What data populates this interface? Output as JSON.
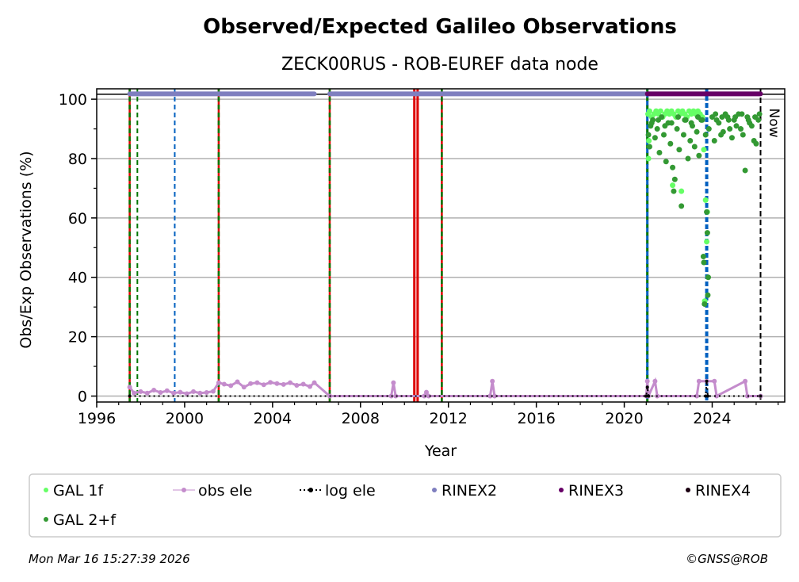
{
  "chart_data": {
    "type": "scatter",
    "title": "Observed/Expected Galileo Observations",
    "subtitle": "ZECK00RUS - ROB-EUREF data node",
    "xlabel": "Year",
    "ylabel": "Obs/Exp Observations (%)",
    "xlim": [
      1996,
      2027.3
    ],
    "ylim": [
      -2,
      103.5
    ],
    "xticks": [
      1996,
      2000,
      2004,
      2008,
      2012,
      2016,
      2020,
      2024
    ],
    "yticks": [
      0,
      20,
      40,
      60,
      80,
      100
    ],
    "grid": "horizontal",
    "now_label": "Now",
    "colors": {
      "gal1f": "#66ff66",
      "gal2f": "#339933",
      "obs_ele": "#c48ccc",
      "log_ele": "#000000",
      "rinex2": "#7f7fbf",
      "rinex3": "#660066",
      "rinex4": "#1a0010"
    },
    "series": [
      {
        "name": "GAL 1f",
        "x": [
          2021.08,
          2021.15,
          2021.25,
          2021.35,
          2021.45,
          2021.55,
          2021.65,
          2021.75,
          2021.85,
          2021.95,
          2022.05,
          2022.15,
          2022.25,
          2022.35,
          2022.45,
          2022.55,
          2022.65,
          2022.75,
          2022.85,
          2022.95,
          2023.05,
          2023.15,
          2023.25,
          2023.35,
          2023.45,
          2023.55,
          2023.62,
          2023.7,
          2023.75,
          2023.66,
          2022.2,
          2022.6,
          2021.1,
          2021.12,
          2023.78
        ],
        "y": [
          95,
          96,
          94,
          95,
          96,
          95,
          96,
          94,
          95,
          96,
          95,
          96,
          95,
          94,
          96,
          95,
          96,
          95,
          94,
          96,
          95,
          96,
          95,
          96,
          95,
          94,
          83,
          66,
          52,
          32,
          71,
          69,
          80,
          86,
          62
        ]
      },
      {
        "name": "GAL 2+f",
        "x": [
          2021.1,
          2021.15,
          2021.2,
          2021.3,
          2021.4,
          2021.5,
          2021.6,
          2021.7,
          2021.8,
          2021.9,
          2022.0,
          2022.1,
          2022.2,
          2022.25,
          2022.3,
          2022.4,
          2022.5,
          2022.6,
          2022.7,
          2022.8,
          2022.9,
          2023.0,
          2023.1,
          2023.2,
          2023.3,
          2023.4,
          2023.5,
          2023.6,
          2023.62,
          2023.65,
          2023.7,
          2023.75,
          2023.78,
          2023.8,
          2023.82,
          2023.85,
          2024.0,
          2024.1,
          2024.2,
          2024.3,
          2024.4,
          2024.5,
          2024.6,
          2024.7,
          2024.8,
          2024.9,
          2025.0,
          2025.1,
          2025.2,
          2025.3,
          2025.4,
          2025.5,
          2025.6,
          2025.7,
          2025.8,
          2025.9,
          2026.0,
          2026.1,
          2026.15,
          2021.25,
          2021.55,
          2021.85,
          2022.15,
          2022.45,
          2022.75,
          2023.05,
          2023.35,
          2023.55,
          2024.15,
          2024.45,
          2024.75,
          2025.05,
          2025.35,
          2025.65,
          2025.95
        ],
        "y": [
          88,
          84,
          91,
          93,
          87,
          90,
          82,
          94,
          88,
          79,
          92,
          85,
          77,
          69,
          73,
          90,
          83,
          64,
          88,
          93,
          80,
          86,
          91,
          84,
          89,
          81,
          93,
          47,
          45,
          31,
          88,
          62,
          55,
          34,
          40,
          90,
          94,
          86,
          93,
          92,
          88,
          89,
          95,
          94,
          90,
          87,
          93,
          91,
          95,
          90,
          88,
          76,
          94,
          92,
          91,
          86,
          85,
          93,
          95,
          92,
          93,
          91,
          92,
          94,
          93,
          92,
          94,
          93,
          95,
          94,
          93,
          94,
          95,
          93,
          94
        ]
      },
      {
        "name": "obs ele",
        "x": [
          1997.5,
          1997.7,
          1998.0,
          1998.3,
          1998.6,
          1998.9,
          1999.2,
          1999.5,
          1999.8,
          2000.1,
          2000.4,
          2000.7,
          2001.0,
          2001.3,
          2001.55,
          2001.8,
          2002.1,
          2002.4,
          2002.7,
          2003.0,
          2003.3,
          2003.6,
          2003.9,
          2004.2,
          2004.5,
          2004.8,
          2005.1,
          2005.4,
          2005.7,
          2005.9,
          2006.6,
          2009.4,
          2009.5,
          2009.6,
          2010.9,
          2011.0,
          2011.1,
          2013.9,
          2014.0,
          2014.1,
          2021.0,
          2021.05,
          2021.1,
          2021.4,
          2021.5,
          2023.3,
          2023.4,
          2023.75,
          2024.1,
          2024.2,
          2025.5,
          2025.6,
          2026.2
        ],
        "y": [
          3,
          1,
          1.5,
          1,
          2,
          1.2,
          1.8,
          1,
          1.3,
          0.8,
          1.5,
          1,
          1.2,
          1.6,
          4.5,
          4,
          3.5,
          4.8,
          3,
          4.2,
          4.5,
          3.8,
          4.6,
          4.2,
          3.9,
          4.5,
          3.6,
          4,
          3.2,
          4.5,
          0,
          0,
          4.5,
          0,
          0,
          1.3,
          0,
          0,
          5,
          0,
          0,
          5,
          0,
          5,
          0,
          0,
          5,
          5,
          5,
          0,
          5,
          0,
          0
        ]
      },
      {
        "name": "log ele",
        "x": [
          1997.5,
          2021.0,
          2021.05,
          2021.1,
          2023.7,
          2023.75,
          2023.8,
          2026.2
        ],
        "y": [
          0,
          0,
          3,
          0,
          0,
          5,
          0,
          0
        ]
      },
      {
        "name": "RINEX2",
        "segments": [
          [
            1997.5,
            2005.9
          ],
          [
            2006.6,
            2021.05
          ]
        ],
        "y": 101.8
      },
      {
        "name": "RINEX3",
        "segments": [
          [
            2021.05,
            2026.2
          ]
        ],
        "y": 101.8
      },
      {
        "name": "RINEX4",
        "segments": []
      }
    ],
    "event_lines": [
      {
        "x": 1997.5,
        "style": "red-green"
      },
      {
        "x": 1997.85,
        "style": "green"
      },
      {
        "x": 1999.55,
        "style": "blue"
      },
      {
        "x": 2001.55,
        "style": "red-green"
      },
      {
        "x": 2006.6,
        "style": "red-green"
      },
      {
        "x": 2010.45,
        "style": "red"
      },
      {
        "x": 2010.6,
        "style": "red"
      },
      {
        "x": 2011.7,
        "style": "red-green"
      },
      {
        "x": 2021.05,
        "style": "green-blue"
      },
      {
        "x": 2023.75,
        "style": "blue-thick"
      },
      {
        "x": 2026.2,
        "style": "black-now"
      }
    ],
    "legend": {
      "placement": "bottom",
      "entries": [
        "GAL 1f",
        "obs ele",
        "log ele",
        "RINEX2",
        "RINEX3",
        "RINEX4",
        "GAL 2+f"
      ]
    }
  },
  "footer": {
    "timestamp": "Mon Mar 16 15:27:39 2026",
    "credit": "©GNSS@ROB"
  }
}
